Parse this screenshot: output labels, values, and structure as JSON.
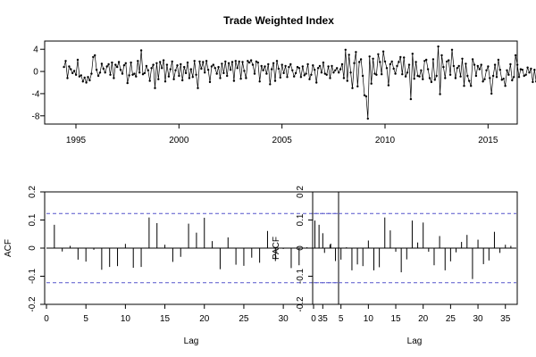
{
  "chart_data": [
    {
      "type": "line",
      "title": "Trade Weighted Index",
      "xlabel": "",
      "ylabel": "",
      "xlim": [
        1993.7,
        2016.2
      ],
      "ylim": [
        -9,
        5
      ],
      "x_ticks": [
        1995,
        2000,
        2005,
        2010,
        2015
      ],
      "y_ticks": [
        -8,
        -4,
        0,
        4
      ],
      "marker": "point",
      "colors": {
        "line": "#000000"
      },
      "series": [
        {
          "start": 1994.42,
          "step": 0.08333,
          "values": [
            0.8,
            1.9,
            -1.2,
            0.9,
            0.4,
            -0.3,
            0.1,
            -0.6,
            2.1,
            -0.9,
            -0.7,
            -1.8,
            -1.1,
            -2.0,
            -1.0,
            -1.6,
            -0.4,
            2.6,
            2.9,
            0.3,
            -0.8,
            -0.2,
            1.4,
            0.5,
            -0.2,
            0.9,
            1.3,
            -0.6,
            1.6,
            -1.2,
            1.2,
            0.8,
            1.7,
            0.3,
            -0.4,
            1.1,
            1.5,
            -2.1,
            -0.7,
            1.6,
            -0.6,
            -0.4,
            -0.9,
            1.9,
            -0.2,
            3.8,
            -0.5,
            -0.3,
            1.0,
            0.2,
            -1.7,
            0.6,
            1.2,
            -3.0,
            1.5,
            -1.4,
            1.7,
            0.6,
            2.0,
            -1.8,
            1.2,
            -0.9,
            0.4,
            1.8,
            -1.4,
            0.2,
            1.1,
            -0.8,
            1.3,
            -1.6,
            0.8,
            -0.3,
            1.6,
            -1.2,
            0.4,
            -1.0,
            1.9,
            -0.6,
            -3.0,
            1.8,
            0.5,
            1.7,
            -0.2,
            1.9,
            0.3,
            -1.9,
            0.9,
            1.2,
            0.6,
            -0.4,
            0.8,
            -1.2,
            1.4,
            -0.3,
            1.8,
            -0.8,
            1.5,
            0.3,
            1.7,
            -1.7,
            1.9,
            0.6,
            1.8,
            -1.3,
            1.7,
            0.1,
            -1.2,
            1.9,
            1.6,
            2.0,
            1.2,
            -0.4,
            1.8,
            1.6,
            -1.8,
            1.0,
            0.2,
            0.9,
            -0.4,
            1.3,
            -2.3,
            0.4,
            1.5,
            -1.7,
            1.9,
            0.5,
            -1.1,
            1.2,
            -0.3,
            1.0,
            -1.0,
            0.8,
            1.3,
            0.2,
            -0.9,
            -0.3,
            0.8,
            0.6,
            -1.0,
            0.9,
            -0.7,
            -0.4,
            1.3,
            -1.4,
            -0.6,
            1.1,
            0.3,
            -2.0,
            0.6,
            1.0,
            -0.2,
            1.6,
            -0.4,
            -0.6,
            0.9,
            -1.2,
            1.0,
            -0.2,
            0.2,
            0.6,
            -0.2,
            0.4,
            1.3,
            -1.2,
            3.9,
            -1.7,
            3.0,
            -0.2,
            -3.0,
            1.5,
            3.5,
            -2.7,
            1.7,
            2.2,
            -0.8,
            -4.3,
            -4.5,
            -8.5,
            2.7,
            -2.2,
            2.3,
            -0.4,
            -0.6,
            3.1,
            1.7,
            -0.5,
            3.6,
            1.8,
            0.6,
            -2.5,
            1.3,
            1.8,
            0.5,
            -0.4,
            1.0,
            1.7,
            2.6,
            -0.5,
            2.5,
            -0.9,
            -0.2,
            1.2,
            -5.0,
            3.2,
            -1.3,
            1.7,
            -0.8,
            -0.9,
            0.2,
            -1.4,
            1.9,
            2.1,
            0.4,
            -1.2,
            -1.9,
            2.2,
            -1.5,
            -0.8,
            4.5,
            -4.1,
            2.9,
            0.8,
            -1.2,
            1.8,
            2.0,
            -0.6,
            3.9,
            1.0,
            -1.2,
            0.6,
            1.0,
            -0.9,
            2.3,
            -2.6,
            1.4,
            -0.8,
            -1.7,
            -2.6,
            2.2,
            1.2,
            -0.8,
            1.0,
            0.4,
            1.2,
            -1.8,
            -1.4,
            0.2,
            0.9,
            -1.2,
            -4.0,
            -0.8,
            1.2,
            -1.0,
            2.1,
            0.3,
            -1.5,
            -1.3,
            -2.6,
            0.2,
            -0.6,
            1.3,
            -1.6,
            -1.0,
            2.9,
            1.2,
            -1.0,
            0.4,
            0.3,
            -0.8,
            -0.6,
            0.7,
            -0.2,
            0.5,
            -1.9,
            0.3,
            -1.8,
            -0.9,
            0.7,
            0.3,
            -1.9,
            -0.6,
            -1.2,
            2.2
          ]
        }
      ]
    },
    {
      "type": "bar",
      "xlabel": "Lag",
      "ylabel": "ACF",
      "xlim": [
        0,
        37
      ],
      "ylim": [
        -0.2,
        0.2
      ],
      "x_ticks": [
        0,
        5,
        10,
        15,
        20,
        25,
        30,
        35
      ],
      "y_ticks": [
        -0.2,
        -0.1,
        0.0,
        0.1,
        0.2
      ],
      "confidence_band": 0.123,
      "colors": {
        "bars": "#000000",
        "band": "#5555cc"
      },
      "x": [
        1,
        2,
        3,
        4,
        5,
        6,
        7,
        8,
        9,
        10,
        11,
        12,
        13,
        14,
        15,
        16,
        17,
        18,
        19,
        20,
        21,
        22,
        23,
        24,
        25,
        26,
        27,
        28,
        29,
        30,
        31,
        32,
        33,
        34,
        35,
        36
      ],
      "values": [
        0.083,
        -0.012,
        0.008,
        -0.041,
        -0.048,
        -0.006,
        -0.077,
        -0.067,
        -0.064,
        0.015,
        -0.07,
        -0.067,
        0.109,
        0.089,
        0.012,
        -0.049,
        -0.031,
        0.087,
        0.055,
        0.108,
        0.025,
        -0.075,
        0.038,
        -0.059,
        -0.063,
        -0.034,
        -0.052,
        0.061,
        -0.046,
        -0.003,
        -0.071,
        -0.061,
        0.003,
        0.098,
        0.053,
        0.016
      ]
    },
    {
      "type": "bar",
      "xlabel": "Lag",
      "ylabel": "PACF",
      "xlim": [
        0,
        37
      ],
      "ylim": [
        -0.2,
        0.2
      ],
      "x_ticks": [
        0,
        5,
        10,
        15,
        20,
        25,
        30,
        35
      ],
      "y_ticks": [
        -0.2,
        -0.1,
        0.0,
        0.1,
        0.2
      ],
      "confidence_band": 0.123,
      "colors": {
        "bars": "#000000",
        "band": "#5555cc"
      },
      "x": [
        1,
        2,
        3,
        4,
        5,
        6,
        7,
        8,
        9,
        10,
        11,
        12,
        13,
        14,
        15,
        16,
        17,
        18,
        19,
        20,
        21,
        22,
        23,
        24,
        25,
        26,
        27,
        28,
        29,
        30,
        31,
        32,
        33,
        34,
        35,
        36
      ],
      "values": [
        0.083,
        -0.017,
        0.012,
        -0.046,
        -0.041,
        0.003,
        -0.079,
        -0.058,
        -0.064,
        0.027,
        -0.079,
        -0.068,
        0.109,
        0.063,
        -0.013,
        -0.086,
        -0.04,
        0.098,
        0.02,
        0.091,
        -0.013,
        -0.061,
        0.043,
        -0.079,
        -0.047,
        -0.015,
        0.022,
        0.047,
        -0.11,
        0.03,
        -0.057,
        -0.044,
        0.058,
        -0.017,
        0.012,
        0.008
      ]
    }
  ]
}
